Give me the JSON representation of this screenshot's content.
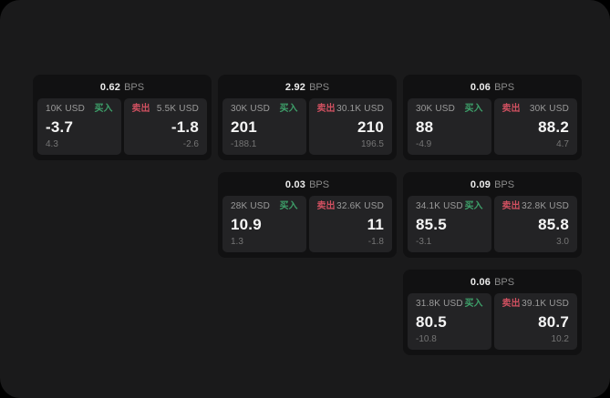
{
  "theme": {
    "outer_bg": "#000000",
    "page_bg": "#1a1a1b",
    "card_bg": "#111112",
    "panel_bg": "#232325",
    "buy_color": "#3ea06a",
    "sell_color": "#cf5060"
  },
  "cards": [
    {
      "bps": "0.62",
      "unit": "BPS",
      "buy": {
        "notional": "10K USD",
        "label": "买入",
        "price": "-3.7",
        "change": "4.3"
      },
      "sell": {
        "label": "卖出",
        "notional": "5.5K USD",
        "price": "-1.8",
        "change": "-2.6"
      }
    },
    {
      "bps": "2.92",
      "unit": "BPS",
      "buy": {
        "notional": "30K USD",
        "label": "买入",
        "price": "201",
        "change": "-188.1"
      },
      "sell": {
        "label": "卖出",
        "notional": "30.1K USD",
        "price": "210",
        "change": "196.5"
      }
    },
    {
      "bps": "0.06",
      "unit": "BPS",
      "buy": {
        "notional": "30K USD",
        "label": "买入",
        "price": "88",
        "change": "-4.9"
      },
      "sell": {
        "label": "卖出",
        "notional": "30K USD",
        "price": "88.2",
        "change": "4.7"
      }
    },
    {
      "bps": "0.03",
      "unit": "BPS",
      "buy": {
        "notional": "28K USD",
        "label": "买入",
        "price": "10.9",
        "change": "1.3"
      },
      "sell": {
        "label": "卖出",
        "notional": "32.6K USD",
        "price": "11",
        "change": "-1.8"
      }
    },
    {
      "bps": "0.09",
      "unit": "BPS",
      "buy": {
        "notional": "34.1K USD",
        "label": "买入",
        "price": "85.5",
        "change": "-3.1"
      },
      "sell": {
        "label": "卖出",
        "notional": "32.8K USD",
        "price": "85.8",
        "change": "3.0"
      }
    },
    {
      "bps": "0.06",
      "unit": "BPS",
      "buy": {
        "notional": "31.8K USD",
        "label": "买入",
        "price": "80.5",
        "change": "-10.8"
      },
      "sell": {
        "label": "卖出",
        "notional": "39.1K USD",
        "price": "80.7",
        "change": "10.2"
      }
    }
  ]
}
